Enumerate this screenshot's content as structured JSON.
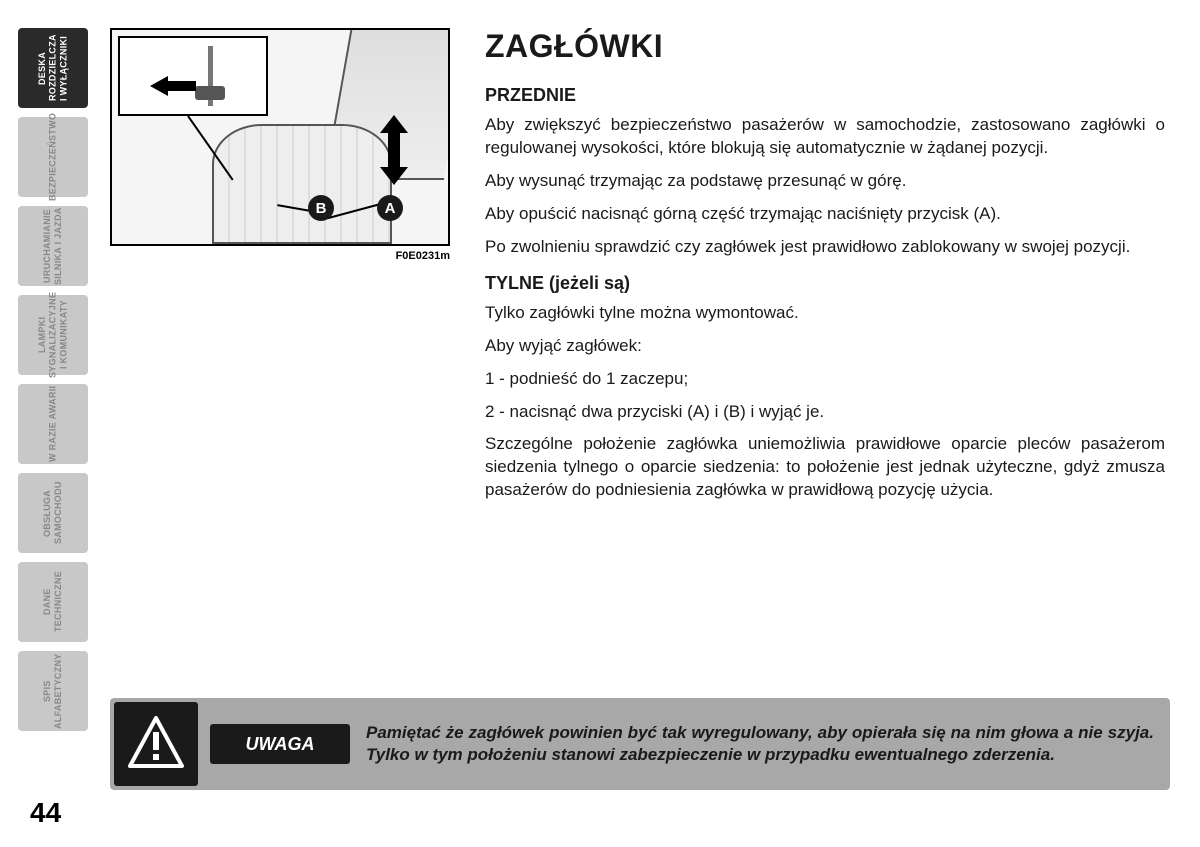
{
  "sidebar": {
    "tabs": [
      {
        "label": "DESKA\nROZDZIELCZA\nI WYŁĄCZNIKI",
        "active": true
      },
      {
        "label": "BEZPIECZEŃSTWO",
        "active": false
      },
      {
        "label": "URUCHAMIANIE\nSILNIKA I JAZDA",
        "active": false
      },
      {
        "label": "LAMPKI\nSYGNALIZACYJNE\nI KOMUNIKATY",
        "active": false
      },
      {
        "label": "W RAZIE AWARII",
        "active": false
      },
      {
        "label": "OBSŁUGA\nSAMOCHODU",
        "active": false
      },
      {
        "label": "DANE\nTECHNICZNE",
        "active": false
      },
      {
        "label": "SPIS\nALFABETYCZNY",
        "active": false
      }
    ]
  },
  "figure": {
    "label": "F0E0231m",
    "callout_a": "A",
    "callout_b": "B"
  },
  "content": {
    "title": "ZAGŁÓWKI",
    "section1": {
      "heading": "PRZEDNIE",
      "p1": "Aby zwiększyć bezpieczeństwo pasażerów w samochodzie, zastosowano zagłówki o regulowanej wysokości, które blokują się automatycznie w żądanej pozycji.",
      "p2": "Aby wysunąć trzymając za podstawę przesunąć w górę.",
      "p3": "Aby opuścić nacisnąć górną część trzymając naciśnięty przycisk (A).",
      "p4": "Po zwolnieniu sprawdzić czy zagłówek jest prawidłowo zablokowany w swojej pozycji."
    },
    "section2": {
      "heading": "TYLNE (jeżeli są)",
      "p1": "Tylko zagłówki tylne można wymontować.",
      "p2": "Aby wyjąć zagłówek:",
      "p3": "1 - podnieść do 1 zaczepu;",
      "p4": "2 - nacisnąć dwa przyciski (A) i (B) i wyjąć je.",
      "p5": "Szczególne położenie zagłówka uniemożliwia prawidłowe oparcie pleców pasażerom siedzenia tylnego o oparcie siedzenia: to położenie jest jednak użyteczne, gdyż zmusza pasażerów do podniesienia zagłówka w prawidłową pozycję użycia."
    }
  },
  "warning": {
    "label": "UWAGA",
    "text": "Pamiętać że zagłówek powinien być tak wyregulowany, aby opierała się na nim głowa a nie szyja. Tylko w tym położeniu stanowi zabezpieczenie w przypadku ewentualnego zderzenia."
  },
  "page_number": "44",
  "colors": {
    "tab_inactive_bg": "#c8c8c8",
    "tab_active_bg": "#2a2a2a",
    "warning_bg": "#a8a8a8",
    "text": "#1a1a1a"
  }
}
